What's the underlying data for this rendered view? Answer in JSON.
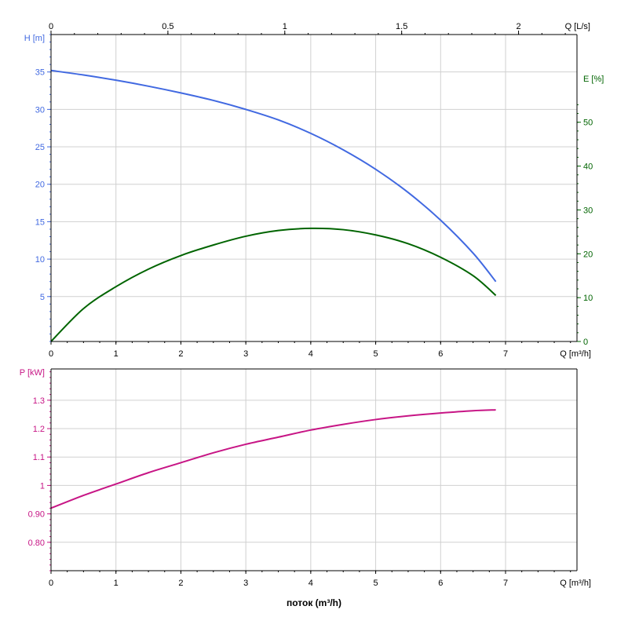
{
  "colors": {
    "head": "#4169e1",
    "efficiency": "#006400",
    "power": "#c71585",
    "axis": "#000000",
    "grid": "#d0d0d0"
  },
  "x_axis_title": "поток (m³/h)",
  "chart_data": [
    {
      "type": "line",
      "name": "head-efficiency-chart",
      "x_unit_label": "Q [m³/h]",
      "x_top_unit_label": "Q [L/s]",
      "xlim": [
        0,
        8.1
      ],
      "x_ticks": [
        0,
        1,
        2,
        3,
        4,
        5,
        6,
        7
      ],
      "x_top_ticks": [
        0,
        0.5,
        1,
        1.5,
        2
      ],
      "left_axis": {
        "label": "H [m]",
        "ylim": [
          -1,
          40
        ],
        "ticks": [
          5,
          10,
          15,
          20,
          25,
          30,
          35
        ]
      },
      "right_axis": {
        "label": "E [%]",
        "ylim": [
          0,
          70
        ],
        "ticks": [
          0,
          10,
          20,
          30,
          40,
          50
        ]
      },
      "grid": true,
      "series": [
        {
          "axis": "left",
          "x": [
            0,
            0.5,
            1.0,
            1.5,
            2.0,
            2.5,
            3.0,
            3.5,
            4.0,
            4.5,
            5.0,
            5.5,
            6.0,
            6.5,
            6.85
          ],
          "y": [
            35.2,
            34.6,
            33.9,
            33.1,
            32.2,
            31.2,
            30.0,
            28.6,
            26.8,
            24.6,
            22.0,
            18.9,
            15.2,
            10.8,
            7.0
          ]
        },
        {
          "axis": "right",
          "x": [
            0,
            0.5,
            1.0,
            1.5,
            2.0,
            2.5,
            3.0,
            3.5,
            4.0,
            4.5,
            5.0,
            5.5,
            6.0,
            6.5,
            6.85
          ],
          "y": [
            0,
            7.5,
            12.5,
            16.5,
            19.6,
            22.0,
            24.0,
            25.3,
            25.8,
            25.5,
            24.3,
            22.3,
            19.2,
            15.0,
            10.5
          ]
        }
      ]
    },
    {
      "type": "line",
      "name": "power-chart",
      "x_unit_label": "Q [m³/h]",
      "xlim": [
        0,
        8.1
      ],
      "x_ticks": [
        0,
        1,
        2,
        3,
        4,
        5,
        6,
        7
      ],
      "left_axis": {
        "label": "P [kW]",
        "ylim": [
          0.7,
          1.41
        ],
        "ticks": [
          0.8,
          0.9,
          1,
          1.1,
          1.2,
          1.3
        ],
        "tick_labels": [
          "0.80",
          "0.90",
          "1",
          "1.1",
          "1.2",
          "1.3"
        ]
      },
      "grid": true,
      "series": [
        {
          "axis": "left",
          "x": [
            0,
            0.5,
            1.0,
            1.5,
            2.0,
            2.5,
            3.0,
            3.5,
            4.0,
            4.5,
            5.0,
            5.5,
            6.0,
            6.5,
            6.85
          ],
          "y": [
            0.92,
            0.965,
            1.005,
            1.045,
            1.08,
            1.115,
            1.145,
            1.17,
            1.195,
            1.215,
            1.232,
            1.245,
            1.255,
            1.263,
            1.266
          ]
        }
      ]
    }
  ]
}
